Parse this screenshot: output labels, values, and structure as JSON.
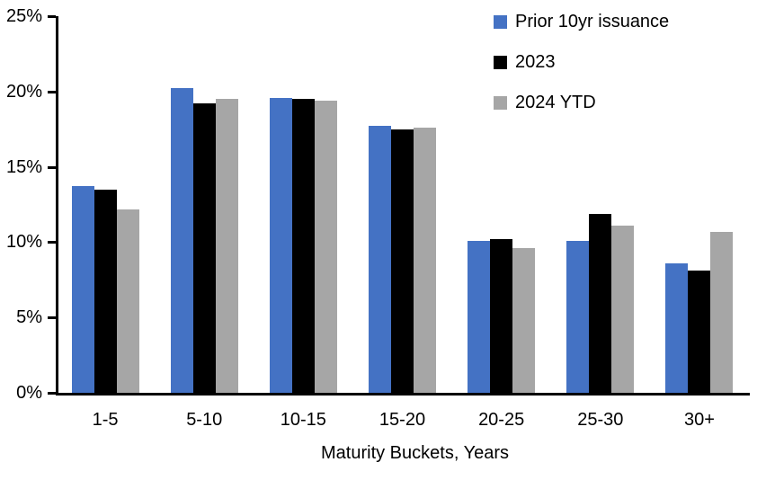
{
  "chart_data": {
    "type": "bar",
    "title": "",
    "xlabel": "Maturity Buckets, Years",
    "ylabel": "",
    "categories": [
      "1-5",
      "5-10",
      "10-15",
      "15-20",
      "20-25",
      "25-30",
      "30+"
    ],
    "series": [
      {
        "name": "Prior 10yr issuance",
        "color": "#4472C4",
        "values": [
          13.7,
          20.2,
          19.6,
          17.7,
          10.1,
          10.1,
          8.6
        ]
      },
      {
        "name": "2023",
        "color": "#000000",
        "values": [
          13.5,
          19.2,
          19.5,
          17.5,
          10.2,
          11.9,
          8.1
        ]
      },
      {
        "name": "2024 YTD",
        "color": "#A6A6A6",
        "values": [
          12.2,
          19.5,
          19.4,
          17.6,
          9.6,
          11.1,
          10.7
        ]
      }
    ],
    "y_axis": {
      "min": 0,
      "max": 25,
      "step": 5,
      "tick_labels": [
        "0%",
        "5%",
        "10%",
        "15%",
        "20%",
        "25%"
      ]
    },
    "legend_position": "top-right",
    "grid": false,
    "axis_color": "#000000",
    "background_color": "#FFFFFF"
  }
}
